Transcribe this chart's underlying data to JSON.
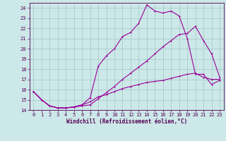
{
  "xlabel": "Windchill (Refroidissement éolien,°C)",
  "bg_color": "#cce8e8",
  "grid_color": "#aacccc",
  "line_color": "#990099",
  "xlim": [
    -0.5,
    23.5
  ],
  "ylim": [
    14.0,
    24.5
  ],
  "xticks": [
    0,
    1,
    2,
    3,
    4,
    5,
    6,
    7,
    8,
    9,
    10,
    11,
    12,
    13,
    14,
    15,
    16,
    17,
    18,
    19,
    20,
    21,
    22,
    23
  ],
  "yticks": [
    14,
    15,
    16,
    17,
    18,
    19,
    20,
    21,
    22,
    23,
    24
  ],
  "line1_x": [
    0,
    1,
    2,
    3,
    4,
    5,
    6,
    7,
    8,
    9,
    10,
    11,
    12,
    13,
    14,
    15,
    16,
    17,
    18,
    19,
    20,
    21,
    22,
    23
  ],
  "line1_y": [
    15.8,
    15.0,
    14.4,
    14.2,
    14.2,
    14.3,
    14.4,
    14.5,
    15.1,
    15.7,
    16.3,
    17.0,
    17.6,
    18.2,
    18.8,
    19.5,
    20.2,
    20.8,
    21.4,
    21.5,
    22.2,
    20.8,
    19.5,
    17.2
  ],
  "line2_x": [
    0,
    1,
    2,
    3,
    4,
    5,
    6,
    7,
    8,
    9,
    10,
    11,
    12,
    13,
    14,
    15,
    16,
    17,
    18,
    19,
    20,
    21,
    22,
    23
  ],
  "line2_y": [
    15.8,
    15.0,
    14.4,
    14.2,
    14.2,
    14.3,
    14.5,
    15.2,
    18.3,
    19.3,
    20.0,
    21.2,
    21.6,
    22.5,
    24.3,
    23.7,
    23.5,
    23.7,
    23.2,
    21.0,
    17.5,
    17.5,
    16.5,
    16.9
  ],
  "line3_x": [
    0,
    1,
    2,
    3,
    4,
    5,
    6,
    7,
    8,
    9,
    10,
    11,
    12,
    13,
    14,
    15,
    16,
    17,
    18,
    19,
    20,
    21,
    22,
    23
  ],
  "line3_y": [
    15.8,
    15.0,
    14.4,
    14.2,
    14.2,
    14.3,
    14.5,
    14.8,
    15.3,
    15.5,
    15.8,
    16.1,
    16.3,
    16.5,
    16.7,
    16.8,
    16.9,
    17.1,
    17.3,
    17.5,
    17.6,
    17.2,
    17.0,
    17.0
  ],
  "title_fontsize": 6,
  "tick_fontsize": 5,
  "xlabel_fontsize": 5.5,
  "lw": 0.8,
  "ms": 2.0
}
